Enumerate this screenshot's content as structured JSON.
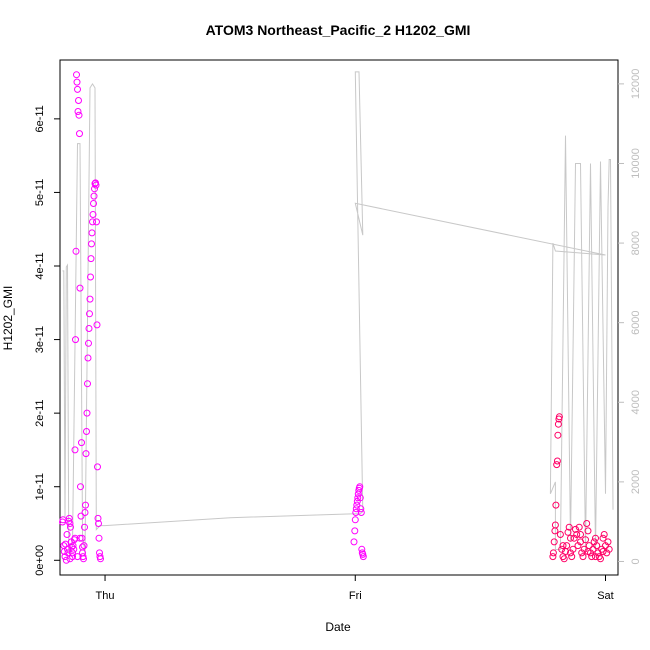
{
  "chart_data": {
    "type": "scatter",
    "title": "ATOM3 Northeast_Pacific_2 H1202_GMI",
    "xlabel": "Date",
    "ylabel": "H1202_GMI",
    "x_ticks": [
      "Thu",
      "Fri",
      "Sat"
    ],
    "y_ticks": [
      "0e+00",
      "1e-11",
      "2e-11",
      "3e-11",
      "4e-11",
      "5e-11",
      "6e-11"
    ],
    "y_tick_values": [
      0,
      1e-11,
      2e-11,
      3e-11,
      4e-11,
      5e-11,
      6e-11
    ],
    "y2_ticks": [
      "0",
      "2000",
      "4000",
      "6000",
      "8000",
      "10000",
      "12000"
    ],
    "y2_tick_values": [
      0,
      2000,
      4000,
      6000,
      8000,
      10000,
      12000
    ],
    "xlim": [
      -0.18,
      2.05
    ],
    "ylim": [
      -2e-12,
      6.8e-11
    ],
    "y2lim": [
      -340,
      12600
    ],
    "colors": {
      "points": "#ff00ff",
      "points_late": "#ff0066",
      "altitude_line": "#c8c8c8",
      "axis": "#000000"
    },
    "series": [
      {
        "type": "scatter",
        "points": [
          [
            -0.17,
            5.2e-12
          ],
          [
            -0.168,
            5.5e-12
          ],
          [
            -0.165,
            2e-12
          ],
          [
            -0.163,
            1.2e-12
          ],
          [
            -0.16,
            5e-13
          ],
          [
            -0.158,
            2.2e-12
          ],
          [
            -0.155,
            0.0
          ],
          [
            -0.152,
            3.5e-12
          ],
          [
            -0.15,
            1.5e-12
          ],
          [
            -0.148,
            1e-12
          ],
          [
            -0.145,
            5.3e-12
          ],
          [
            -0.143,
            5.7e-12
          ],
          [
            -0.14,
            5e-12
          ],
          [
            -0.138,
            4.5e-12
          ],
          [
            -0.135,
            2.5e-12
          ],
          [
            -0.133,
            1.8e-12
          ],
          [
            -0.13,
            5e-13
          ],
          [
            -0.128,
            2e-12
          ],
          [
            -0.125,
            1.5e-12
          ],
          [
            -0.123,
            2.8e-12
          ],
          [
            -0.12,
            1.5e-11
          ],
          [
            -0.118,
            3e-11
          ],
          [
            -0.116,
            4.2e-11
          ],
          [
            -0.114,
            6.6e-11
          ],
          [
            -0.112,
            6.5e-11
          ],
          [
            -0.11,
            6.4e-11
          ],
          [
            -0.108,
            6.1e-11
          ],
          [
            -0.106,
            6.25e-11
          ],
          [
            -0.104,
            6.05e-11
          ],
          [
            -0.102,
            5.8e-11
          ],
          [
            -0.1,
            3.7e-11
          ],
          [
            -0.098,
            1e-11
          ],
          [
            -0.096,
            6e-12
          ],
          [
            -0.094,
            1.6e-11
          ],
          [
            -0.092,
            3e-12
          ],
          [
            -0.09,
            1e-12
          ],
          [
            -0.088,
            5e-13
          ],
          [
            -0.086,
            2e-13
          ],
          [
            -0.084,
            2e-12
          ],
          [
            -0.082,
            4.5e-12
          ],
          [
            -0.08,
            6.5e-12
          ],
          [
            -0.078,
            7.5e-12
          ],
          [
            -0.076,
            1.45e-11
          ],
          [
            -0.074,
            1.75e-11
          ],
          [
            -0.072,
            2e-11
          ],
          [
            -0.07,
            2.4e-11
          ],
          [
            -0.068,
            2.75e-11
          ],
          [
            -0.066,
            2.95e-11
          ],
          [
            -0.064,
            3.15e-11
          ],
          [
            -0.062,
            3.35e-11
          ],
          [
            -0.06,
            3.55e-11
          ],
          [
            -0.058,
            3.85e-11
          ],
          [
            -0.056,
            4.1e-11
          ],
          [
            -0.054,
            4.3e-11
          ],
          [
            -0.052,
            4.45e-11
          ],
          [
            -0.05,
            4.6e-11
          ],
          [
            -0.048,
            4.7e-11
          ],
          [
            -0.046,
            4.85e-11
          ],
          [
            -0.044,
            4.95e-11
          ],
          [
            -0.042,
            5.05e-11
          ],
          [
            -0.04,
            5.12e-11
          ],
          [
            -0.038,
            5.13e-11
          ],
          [
            -0.036,
            5.1e-11
          ],
          [
            -0.034,
            4.6e-11
          ],
          [
            -0.032,
            3.2e-11
          ],
          [
            -0.03,
            1.27e-11
          ],
          [
            -0.028,
            5.7e-12
          ],
          [
            -0.026,
            5e-12
          ],
          [
            -0.024,
            3e-12
          ],
          [
            -0.022,
            1e-12
          ],
          [
            -0.02,
            5e-13
          ],
          [
            -0.018,
            2e-13
          ],
          [
            -0.14,
            2e-13
          ],
          [
            -0.13,
            1e-12
          ],
          [
            -0.12,
            3e-12
          ],
          [
            -0.11,
            5e-13
          ],
          [
            -0.1,
            3e-12
          ],
          [
            -0.09,
            1.8e-12
          ],
          [
            0.995,
            2.5e-12
          ],
          [
            0.998,
            4e-12
          ],
          [
            1.0,
            5.5e-12
          ],
          [
            1.002,
            6.5e-12
          ],
          [
            1.004,
            7e-12
          ],
          [
            1.006,
            7.5e-12
          ],
          [
            1.008,
            8e-12
          ],
          [
            1.01,
            8.5e-12
          ],
          [
            1.012,
            9e-12
          ],
          [
            1.014,
            9.5e-12
          ],
          [
            1.016,
            9.8e-12
          ],
          [
            1.018,
            1e-11
          ],
          [
            1.02,
            8.5e-12
          ],
          [
            1.022,
            7e-12
          ],
          [
            1.024,
            6.5e-12
          ],
          [
            1.026,
            1.5e-12
          ],
          [
            1.028,
            1e-12
          ],
          [
            1.03,
            8e-13
          ],
          [
            1.032,
            5e-13
          ],
          [
            1.79,
            5e-13
          ],
          [
            1.792,
            1e-12
          ],
          [
            1.795,
            2.5e-12
          ],
          [
            1.798,
            4e-12
          ],
          [
            1.8,
            4.8e-12
          ],
          [
            1.802,
            7.5e-12
          ],
          [
            1.805,
            1.3e-11
          ],
          [
            1.808,
            1.35e-11
          ],
          [
            1.81,
            1.7e-11
          ],
          [
            1.812,
            1.85e-11
          ],
          [
            1.814,
            1.92e-11
          ],
          [
            1.816,
            1.95e-11
          ],
          [
            1.82,
            3.5e-12
          ],
          [
            1.825,
            1.5e-12
          ],
          [
            1.83,
            5e-13
          ],
          [
            1.835,
            2e-13
          ],
          [
            1.84,
            1.2e-12
          ],
          [
            1.845,
            2e-12
          ],
          [
            1.85,
            3.8e-12
          ],
          [
            1.855,
            4.5e-12
          ],
          [
            1.86,
            1e-12
          ],
          [
            1.865,
            5e-13
          ],
          [
            1.87,
            1.5e-12
          ],
          [
            1.875,
            3e-12
          ],
          [
            1.88,
            4.2e-12
          ],
          [
            1.885,
            3.5e-12
          ],
          [
            1.89,
            2e-12
          ],
          [
            1.895,
            4.5e-12
          ],
          [
            1.9,
            2.5e-12
          ],
          [
            1.905,
            1e-12
          ],
          [
            1.91,
            5e-13
          ],
          [
            1.915,
            1.5e-12
          ],
          [
            1.92,
            2.8e-12
          ],
          [
            1.925,
            5e-12
          ],
          [
            1.93,
            4e-12
          ],
          [
            1.935,
            2e-12
          ],
          [
            1.94,
            1e-12
          ],
          [
            1.945,
            5e-13
          ],
          [
            1.95,
            1.5e-12
          ],
          [
            1.955,
            2.5e-12
          ],
          [
            1.96,
            3e-12
          ],
          [
            1.965,
            2e-12
          ],
          [
            1.97,
            1e-12
          ],
          [
            1.975,
            5e-13
          ],
          [
            1.98,
            2e-13
          ],
          [
            1.985,
            1.5e-12
          ],
          [
            1.99,
            3e-12
          ],
          [
            1.995,
            3.5e-12
          ],
          [
            2.0,
            2e-12
          ],
          [
            2.005,
            1e-12
          ],
          [
            2.01,
            2.5e-12
          ],
          [
            2.015,
            1.5e-12
          ],
          [
            1.83,
            2e-12
          ],
          [
            1.86,
            3e-12
          ],
          [
            1.9,
            3.5e-12
          ],
          [
            1.93,
            1.2e-12
          ],
          [
            1.96,
            5e-13
          ],
          [
            1.99,
            1.2e-12
          ]
        ]
      },
      {
        "type": "line",
        "axis": "right",
        "points": [
          [
            -0.17,
            7300
          ],
          [
            -0.165,
            7300
          ],
          [
            -0.16,
            1100
          ],
          [
            -0.155,
            7400
          ],
          [
            -0.15,
            7450
          ],
          [
            -0.145,
            200
          ],
          [
            -0.14,
            200
          ],
          [
            -0.13,
            400
          ],
          [
            -0.11,
            10500
          ],
          [
            -0.1,
            10500
          ],
          [
            -0.09,
            700
          ],
          [
            -0.08,
            200
          ],
          [
            -0.06,
            11900
          ],
          [
            -0.05,
            12000
          ],
          [
            -0.04,
            11900
          ],
          [
            -0.035,
            800
          ],
          [
            -0.02,
            900
          ],
          [
            0.0,
            900
          ],
          [
            0.5,
            1100
          ],
          [
            1.0,
            1200
          ],
          [
            1.02,
            1200
          ],
          [
            1.03,
            1250
          ],
          [
            1.0,
            12300
          ],
          [
            1.015,
            12300
          ],
          [
            1.03,
            8200
          ],
          [
            1.0,
            9000
          ],
          [
            2.0,
            7700
          ],
          [
            1.8,
            7800
          ],
          [
            1.79,
            8000
          ],
          [
            1.78,
            1700
          ],
          [
            1.8,
            2000
          ],
          [
            1.8,
            300
          ],
          [
            1.82,
            300
          ],
          [
            1.84,
            10700
          ],
          [
            1.86,
            500
          ],
          [
            1.88,
            10000
          ],
          [
            1.9,
            10000
          ],
          [
            1.92,
            300
          ],
          [
            1.94,
            10000
          ],
          [
            1.96,
            300
          ],
          [
            1.98,
            10050
          ],
          [
            2.0,
            1700
          ],
          [
            2.01,
            8900
          ],
          [
            2.015,
            10100
          ],
          [
            2.02,
            10100
          ],
          [
            2.03,
            1300
          ]
        ]
      }
    ]
  }
}
